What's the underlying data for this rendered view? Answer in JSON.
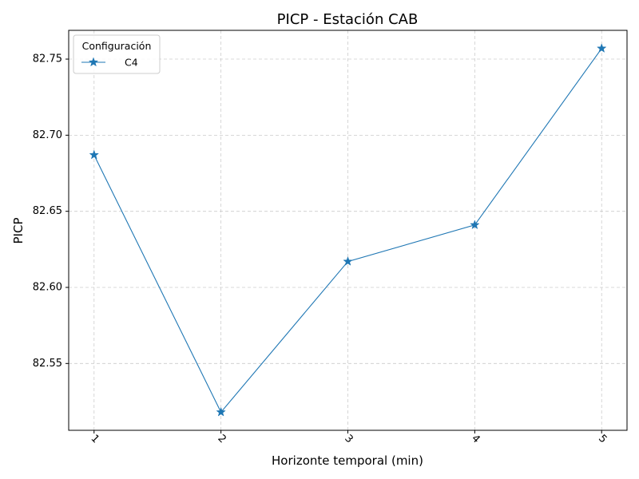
{
  "chart_data": {
    "type": "line",
    "title": "PICP - Estación CAB",
    "xlabel": "Horizonte temporal (min)",
    "ylabel": "PICP",
    "categories": [
      "1",
      "2",
      "3",
      "4",
      "5"
    ],
    "x": [
      1,
      2,
      3,
      4,
      5
    ],
    "series": [
      {
        "name": "C4",
        "values": [
          82.687,
          82.518,
          82.617,
          82.641,
          82.757
        ],
        "color": "#1f77b4",
        "marker": "star"
      }
    ],
    "xlim": [
      0.8,
      5.2
    ],
    "ylim": [
      82.5061,
      82.7689
    ],
    "yticks": [
      82.55,
      82.6,
      82.65,
      82.7,
      82.75
    ],
    "ytick_labels": [
      "82.55",
      "82.60",
      "82.65",
      "82.70",
      "82.75"
    ],
    "xtick_rotation": 45,
    "grid": true,
    "legend": {
      "title": "Configuración",
      "placement": "top-left"
    }
  }
}
